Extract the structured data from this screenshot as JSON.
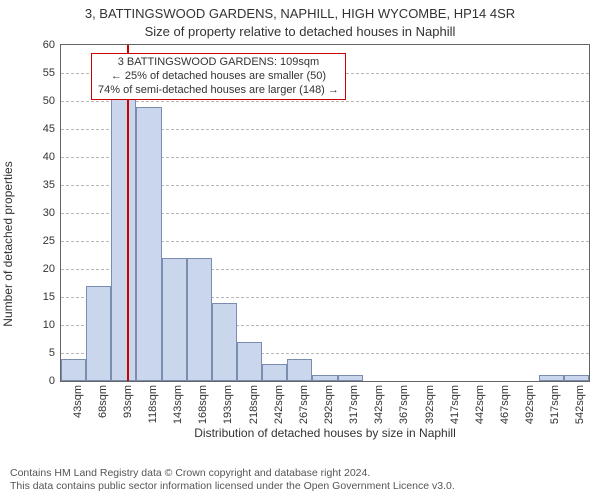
{
  "chart": {
    "type": "histogram",
    "title_line1": "3, BATTINGSWOOD GARDENS, NAPHILL, HIGH WYCOMBE, HP14 4SR",
    "title_line2": "Size of property relative to detached houses in Naphill",
    "ylabel": "Number of detached properties",
    "xlabel": "Distribution of detached houses by size in Naphill",
    "ylim": [
      0,
      60
    ],
    "ytick_step": 5,
    "x_bin_start": 43,
    "x_bin_width": 25,
    "x_bins": 21,
    "x_tick_labels": [
      "43sqm",
      "68sqm",
      "93sqm",
      "118sqm",
      "143sqm",
      "168sqm",
      "193sqm",
      "218sqm",
      "242sqm",
      "267sqm",
      "292sqm",
      "317sqm",
      "342sqm",
      "367sqm",
      "392sqm",
      "417sqm",
      "442sqm",
      "467sqm",
      "492sqm",
      "517sqm",
      "542sqm"
    ],
    "bar_values": [
      4,
      17,
      51,
      49,
      22,
      22,
      14,
      7,
      3,
      4,
      1,
      1,
      0,
      0,
      0,
      0,
      0,
      0,
      0,
      1,
      1
    ],
    "bar_fill_color": "#cad6ec",
    "bar_border_color": "#7a8db0",
    "background_color": "#ffffff",
    "grid_color": "#b8b8b8",
    "axis_color": "#646464",
    "marker_value": 109,
    "marker_color": "#cc0000",
    "annotation": {
      "line1": "3 BATTINGSWOOD GARDENS: 109sqm",
      "line2": "← 25% of detached houses are smaller (50)",
      "line3": "74% of semi-detached houses are larger (148) →",
      "border_color": "#cc0000",
      "fontsize": 11
    },
    "title_fontsize": 13,
    "label_fontsize": 12,
    "tick_fontsize": 11,
    "font_family": "Arial"
  },
  "attribution": {
    "line1": "Contains HM Land Registry data © Crown copyright and database right 2024.",
    "line2": "This data contains public sector information licensed under the Open Government Licence v3.0.",
    "fontsize": 10.5,
    "color": "#555555"
  }
}
